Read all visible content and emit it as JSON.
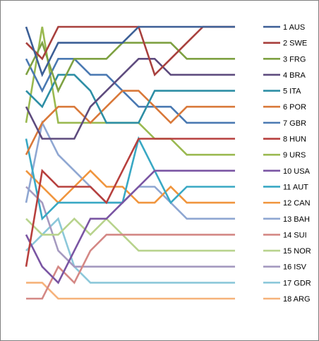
{
  "chart_data": {
    "type": "line",
    "title": "",
    "xlabel": "",
    "ylabel": "",
    "x": [
      1,
      2,
      3,
      4,
      5,
      6,
      7,
      8,
      9,
      10,
      11,
      12,
      13,
      14
    ],
    "ylim": [
      1,
      18
    ],
    "y_inverted": true,
    "grid": false,
    "axes_visible": false,
    "legend_position": "right",
    "series": [
      {
        "name": "1 AUS",
        "color": "#3c5f96",
        "values": [
          1,
          4,
          2,
          2,
          2,
          2,
          2,
          1,
          1,
          1,
          1,
          1,
          1,
          1
        ]
      },
      {
        "name": "2 SWE",
        "color": "#a8403d",
        "values": [
          2,
          3,
          1,
          1,
          1,
          1,
          1,
          1,
          4,
          3,
          2,
          1,
          1,
          1
        ]
      },
      {
        "name": "3 FRG",
        "color": "#7ea142",
        "values": [
          4,
          2,
          5,
          3,
          3,
          3,
          2,
          2,
          2,
          2,
          3,
          3,
          3,
          3
        ]
      },
      {
        "name": "4 BRA",
        "color": "#5e4b7e",
        "values": [
          6,
          8,
          8,
          8,
          6,
          5,
          4,
          3,
          3,
          4,
          4,
          4,
          4,
          4
        ]
      },
      {
        "name": "5 ITA",
        "color": "#2d8ea5",
        "values": [
          5,
          6,
          4,
          4,
          5,
          7,
          7,
          7,
          5,
          5,
          5,
          5,
          5,
          5
        ]
      },
      {
        "name": "6 POR",
        "color": "#d9793a",
        "values": [
          9,
          7,
          6,
          6,
          7,
          6,
          5,
          5,
          6,
          7,
          6,
          6,
          6,
          6
        ]
      },
      {
        "name": "7 GBR",
        "color": "#4a79b2",
        "values": [
          3,
          5,
          3,
          3,
          4,
          4,
          5,
          6,
          6,
          6,
          7,
          7,
          7,
          7
        ]
      },
      {
        "name": "8 HUN",
        "color": "#b7403e",
        "values": [
          16,
          10,
          11,
          11,
          11,
          12,
          10,
          8,
          8,
          8,
          8,
          8,
          8,
          8
        ]
      },
      {
        "name": "9 URS",
        "color": "#9ab950",
        "values": [
          7,
          1,
          7,
          7,
          7,
          7,
          7,
          7,
          8,
          8,
          9,
          9,
          9,
          9
        ]
      },
      {
        "name": "10 USA",
        "color": "#7a55a3",
        "values": [
          14,
          16,
          17,
          15,
          13,
          13,
          12,
          11,
          10,
          10,
          10,
          10,
          10,
          10
        ]
      },
      {
        "name": "11 AUT",
        "color": "#39a8c4",
        "values": [
          8,
          13,
          12,
          12,
          12,
          12,
          12,
          8,
          10,
          12,
          11,
          11,
          11,
          11
        ]
      },
      {
        "name": "12 CAN",
        "color": "#f0953d",
        "values": [
          10,
          11,
          12,
          11,
          10,
          11,
          11,
          12,
          12,
          11,
          12,
          12,
          12,
          12
        ]
      },
      {
        "name": "13 BAH",
        "color": "#8fa7d2",
        "values": [
          12,
          7,
          9,
          10,
          11,
          12,
          12,
          11,
          11,
          12,
          13,
          13,
          13,
          13
        ]
      },
      {
        "name": "14 SUI",
        "color": "#d48885",
        "values": [
          18,
          18,
          16,
          17,
          15,
          14,
          14,
          14,
          14,
          14,
          14,
          14,
          14,
          14
        ]
      },
      {
        "name": "15 NOR",
        "color": "#b8d38d",
        "values": [
          13,
          14,
          14,
          13,
          14,
          13,
          14,
          15,
          15,
          15,
          15,
          15,
          15,
          15
        ]
      },
      {
        "name": "16 ISV",
        "color": "#a59ac0",
        "values": [
          11,
          12,
          15,
          16,
          16,
          16,
          16,
          16,
          16,
          16,
          16,
          16,
          16,
          16
        ]
      },
      {
        "name": "17 GDR",
        "color": "#8cc8da",
        "values": [
          15,
          14,
          13,
          16,
          17,
          17,
          17,
          17,
          17,
          17,
          17,
          17,
          17,
          17
        ]
      },
      {
        "name": "18 ARG",
        "color": "#f6b27a",
        "values": [
          17,
          17,
          18,
          18,
          18,
          18,
          18,
          18,
          18,
          18,
          18,
          18,
          18,
          18
        ]
      }
    ]
  }
}
